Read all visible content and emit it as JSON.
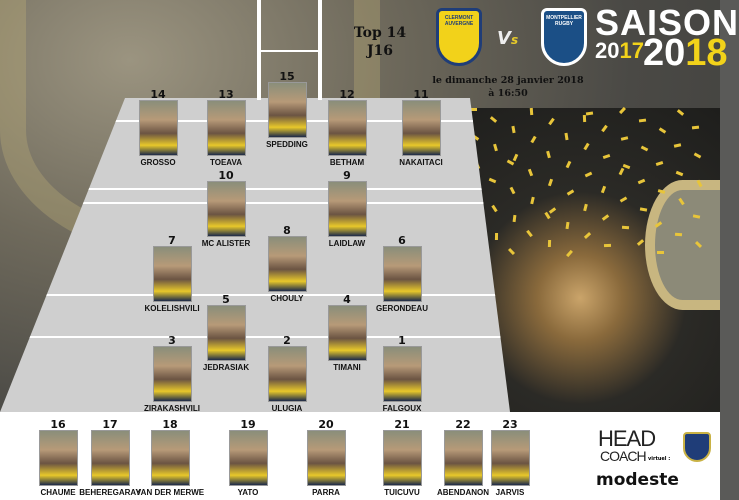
{
  "match": {
    "competition": "Top 14",
    "round": "J16",
    "date_line": "le dimanche 28 janvier 2018",
    "time_line": "à  16:50",
    "home_team_logo_text": "CLERMONT AUVERGNE",
    "vs_label_v": "V",
    "vs_label_s": "s",
    "away_team_logo_text": "MONTPELLIER RUGBY"
  },
  "season": {
    "label": "SAISON",
    "year_start_prefix": "20",
    "year_start_suffix": "17",
    "year_end_prefix": "20",
    "year_end_suffix": "18"
  },
  "starters": [
    {
      "number": "15",
      "name": "SPEDDING"
    },
    {
      "number": "14",
      "name": "GROSSO"
    },
    {
      "number": "13",
      "name": "TOEAVA"
    },
    {
      "number": "12",
      "name": "BETHAM"
    },
    {
      "number": "11",
      "name": "NAKAITACI"
    },
    {
      "number": "10",
      "name": "MC ALISTER"
    },
    {
      "number": "9",
      "name": "LAIDLAW"
    },
    {
      "number": "8",
      "name": "CHOULY"
    },
    {
      "number": "7",
      "name": "KOLELISHVILI"
    },
    {
      "number": "6",
      "name": "GERONDEAU"
    },
    {
      "number": "5",
      "name": "JEDRASIAK"
    },
    {
      "number": "4",
      "name": "TIMANI"
    },
    {
      "number": "3",
      "name": "ZIRAKASHVILI"
    },
    {
      "number": "2",
      "name": "ULUGIA"
    },
    {
      "number": "1",
      "name": "FALGOUX"
    }
  ],
  "bench": [
    {
      "number": "16",
      "name": "CHAUME"
    },
    {
      "number": "17",
      "name": "BEHEREGARAY"
    },
    {
      "number": "18",
      "name": "VAN DER MERWE"
    },
    {
      "number": "19",
      "name": "YATO"
    },
    {
      "number": "20",
      "name": "PARRA"
    },
    {
      "number": "21",
      "name": "TUICUVU"
    },
    {
      "number": "22",
      "name": "ABENDANON"
    },
    {
      "number": "23",
      "name": "JARVIS"
    }
  ],
  "coach": {
    "head": "HEAD",
    "coach": "COACH",
    "virtuel": "virtuel :",
    "name": "modeste"
  },
  "colors": {
    "clermont_yellow": "#f2d21a",
    "clermont_blue": "#1f3d78",
    "montpellier_blue": "#1b4f86",
    "pitch": "#cfcfcf"
  }
}
